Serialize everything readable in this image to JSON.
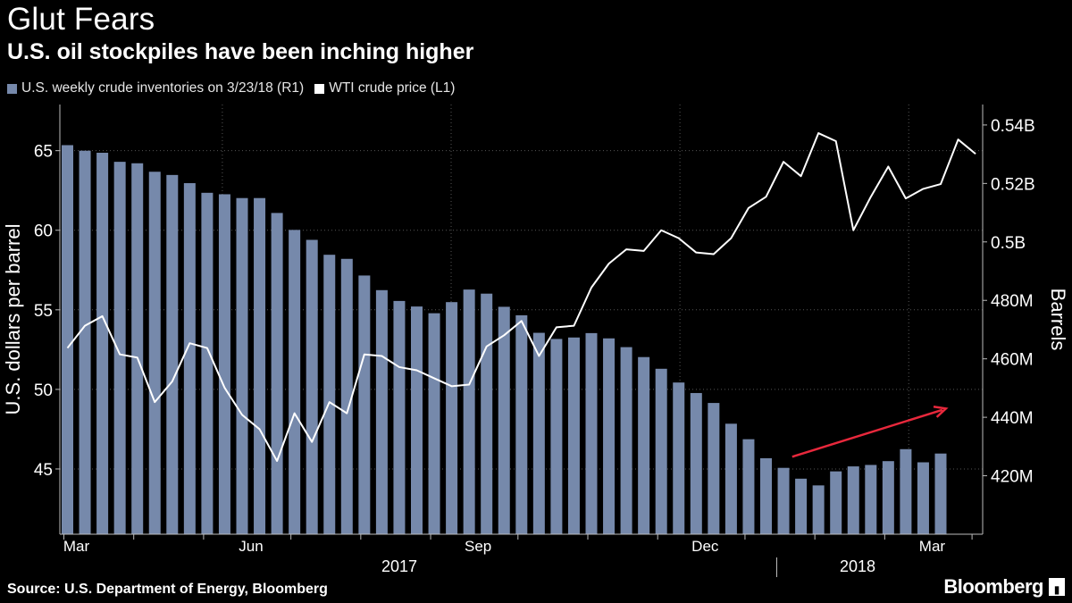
{
  "header": {
    "title": "Glut Fears",
    "subtitle": "U.S. oil stockpiles have been inching higher"
  },
  "legend": {
    "items": [
      {
        "label": "U.S. weekly crude inventories on 3/23/18 (R1)",
        "color": "#7689ab"
      },
      {
        "label": "WTI crude price (L1)",
        "color": "#ffffff"
      }
    ]
  },
  "footer": {
    "source": "Source: U.S. Department of Energy, Bloomberg",
    "brand": "Bloomberg"
  },
  "colors": {
    "background": "#000000",
    "bar": "#7689ab",
    "line": "#ffffff",
    "arrow": "#e8283c",
    "grid": "#555555"
  },
  "chart_data": {
    "type": "bar+line",
    "title": "Glut Fears",
    "subtitle": "U.S. oil stockpiles have been inching higher",
    "left_axis": {
      "label": "U.S. dollars per barrel",
      "ticks": [
        45,
        50,
        55,
        60,
        65
      ],
      "tick_labels": [
        "45",
        "50",
        "55",
        "60",
        "65"
      ],
      "range": [
        40.9,
        67.9
      ]
    },
    "right_axis": {
      "label": "Barrels",
      "ticks": [
        420,
        440,
        460,
        480,
        500,
        520,
        540
      ],
      "tick_labels": [
        "420M",
        "440M",
        "460M",
        "480M",
        "0.5B",
        "0.52B",
        "0.54B"
      ],
      "range": [
        400,
        547
      ],
      "unit": "million barrels"
    },
    "x_axis": {
      "month_labels": [
        "Mar",
        "Jun",
        "Sep",
        "Dec",
        "Mar"
      ],
      "month_label_weeks": [
        0,
        10,
        23,
        36,
        49
      ],
      "year_labels": [
        "2017",
        "2018"
      ],
      "year_divider_after_week": 40,
      "minor_tick_weeks": [
        0,
        4,
        8,
        13,
        17,
        21,
        26,
        30,
        34,
        39,
        43,
        47,
        52
      ]
    },
    "series": [
      {
        "name": "U.S. weekly crude inventories on 3/23/18 (R1)",
        "axis": "right",
        "kind": "bar",
        "values": [
          533.1,
          531.2,
          530.5,
          527.4,
          526.9,
          524.0,
          522.9,
          520.1,
          516.8,
          516.3,
          515.0,
          515.0,
          509.9,
          504.1,
          500.7,
          495.6,
          494.2,
          488.5,
          483.5,
          479.8,
          477.9,
          475.6,
          479.4,
          483.7,
          482.3,
          477.8,
          474.9,
          468.9,
          466.8,
          467.3,
          468.8,
          467.0,
          464.0,
          460.6,
          456.6,
          451.9,
          448.3,
          444.9,
          437.8,
          432.5,
          426.0,
          422.7,
          419.0,
          416.7,
          421.5,
          423.2,
          423.7,
          425.0,
          429.1,
          424.6,
          427.6
        ]
      },
      {
        "name": "WTI crude price (L1)",
        "axis": "left",
        "kind": "line",
        "values": [
          52.6,
          54.0,
          54.6,
          52.2,
          52.0,
          49.2,
          50.5,
          52.9,
          52.6,
          50.1,
          48.4,
          47.5,
          45.5,
          48.5,
          46.7,
          49.2,
          48.5,
          52.2,
          52.1,
          51.4,
          51.2,
          50.7,
          50.2,
          50.3,
          52.7,
          53.4,
          54.3,
          52.1,
          53.9,
          54.0,
          56.4,
          57.9,
          58.8,
          58.7,
          60.0,
          59.5,
          58.6,
          58.5,
          59.5,
          61.4,
          62.1,
          64.3,
          63.4,
          66.1,
          65.6,
          60.0,
          62.1,
          64.0,
          62.0,
          62.6,
          62.9,
          65.7,
          64.8
        ]
      }
    ],
    "annotations": [
      {
        "type": "arrow",
        "from_week": 41.5,
        "from_value_right": 426.5,
        "to_week": 50.3,
        "to_value_right": 443.0,
        "color": "#e8283c"
      }
    ]
  }
}
